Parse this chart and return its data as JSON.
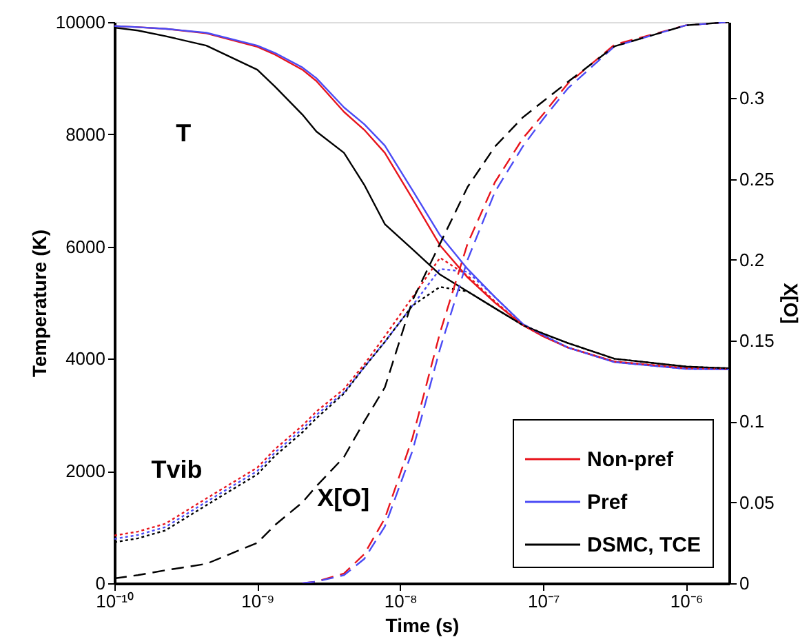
{
  "chart_data": {
    "type": "line",
    "xlabel": "Time (s)",
    "ylabel": "Temperature (K)",
    "y2label": "X[O]",
    "log": "x",
    "grid": false,
    "legend": "bottom right",
    "marker": "none",
    "xlim": [
      1e-10,
      2e-06
    ],
    "ylim": [
      0,
      10000
    ],
    "y2lim": [
      0,
      0.347
    ],
    "xticks": [
      {
        "value": 1e-10,
        "label": "10⁻¹⁰"
      },
      {
        "value": 1e-09,
        "label": "10⁻⁹"
      },
      {
        "value": 1e-08,
        "label": "10⁻⁸"
      },
      {
        "value": 1e-07,
        "label": "10⁻⁷"
      },
      {
        "value": 1e-06,
        "label": "10⁻⁶"
      }
    ],
    "yticks": [
      0,
      2000,
      4000,
      6000,
      8000,
      10000
    ],
    "y2ticks": [
      0,
      0.05,
      0.1,
      0.15,
      0.2,
      0.25,
      0.3
    ],
    "x": [
      1e-10,
      1.46e-10,
      2.27e-10,
      4.4e-10,
      1e-09,
      1.33e-09,
      2.07e-09,
      2.59e-09,
      4.04e-09,
      5.6e-09,
      7.8e-09,
      1.22e-08,
      1.9e-08,
      2.96e-08,
      4.6e-08,
      7.2e-08,
      1e-07,
      1.49e-07,
      3.16e-07,
      1e-06,
      2e-06
    ],
    "series": [
      {
        "name": "Non-pref",
        "color": "#e8141c",
        "line_style": "solid",
        "values": [
          9930,
          9910,
          9880,
          9800,
          9560,
          9420,
          9150,
          8950,
          8400,
          8080,
          7670,
          6850,
          6020,
          5450,
          5000,
          4600,
          4400,
          4200,
          3950,
          3830,
          3820
        ]
      },
      {
        "name": "Pref",
        "color": "#4b4bf5",
        "line_style": "solid",
        "values": [
          9930,
          9910,
          9880,
          9810,
          9580,
          9450,
          9190,
          9000,
          8480,
          8180,
          7800,
          7000,
          6200,
          5600,
          5100,
          4620,
          4420,
          4200,
          3940,
          3820,
          3810
        ]
      },
      {
        "name": "DSMC, TCE",
        "color": "#000000",
        "line_style": "solid",
        "values": [
          9900,
          9850,
          9750,
          9580,
          9150,
          8850,
          8350,
          8050,
          7670,
          7100,
          6400,
          5950,
          5500,
          5200,
          4900,
          4600,
          4450,
          4280,
          4000,
          3860,
          3830
        ]
      },
      {
        "color": "#e8141c",
        "line_style": "dotted",
        "values": [
          850,
          920,
          1060,
          1510,
          2060,
          2390,
          2810,
          3060,
          3460,
          3900,
          4400,
          5100,
          5800,
          5480,
          5020,
          4600,
          4400,
          4200,
          3950,
          3830,
          3820
        ]
      },
      {
        "color": "#4b4bf5",
        "line_style": "dotted",
        "values": [
          790,
          860,
          1000,
          1450,
          2000,
          2330,
          2750,
          3000,
          3400,
          3850,
          4300,
          4950,
          5600,
          5550,
          5100,
          4620,
          4420,
          4200,
          3940,
          3820,
          3810
        ]
      },
      {
        "color": "#000000",
        "line_style": "dotted",
        "values": [
          730,
          800,
          940,
          1390,
          1940,
          2270,
          2690,
          2940,
          3380,
          3850,
          4300,
          4950,
          5280,
          5200,
          4900,
          4600,
          4450,
          4280,
          4000,
          3860,
          3830
        ]
      },
      {
        "color": "#e8141c",
        "line_style": "dashed",
        "axis": "y2",
        "values": [
          null,
          null,
          null,
          null,
          null,
          null,
          0,
          0.001,
          0.006,
          0.018,
          0.04,
          0.09,
          0.155,
          0.21,
          0.248,
          0.275,
          0.29,
          0.309,
          0.333,
          0.345,
          0.347
        ]
      },
      {
        "color": "#4b4bf5",
        "line_style": "dashed",
        "axis": "y2",
        "values": [
          null,
          null,
          null,
          null,
          null,
          null,
          0,
          0.001,
          0.005,
          0.015,
          0.035,
          0.082,
          0.145,
          0.2,
          0.242,
          0.27,
          0.287,
          0.306,
          0.332,
          0.345,
          0.347
        ]
      },
      {
        "color": "#000000",
        "line_style": "dashed",
        "axis": "y2",
        "values": [
          0.003,
          0.005,
          0.008,
          0.012,
          0.025,
          0.036,
          0.05,
          0.06,
          0.078,
          0.1,
          0.121,
          0.175,
          0.21,
          0.245,
          0.27,
          0.288,
          0.298,
          0.31,
          0.332,
          0.345,
          0.347
        ]
      }
    ],
    "annotations": [
      "T",
      "Tvib",
      "X[O]"
    ]
  }
}
